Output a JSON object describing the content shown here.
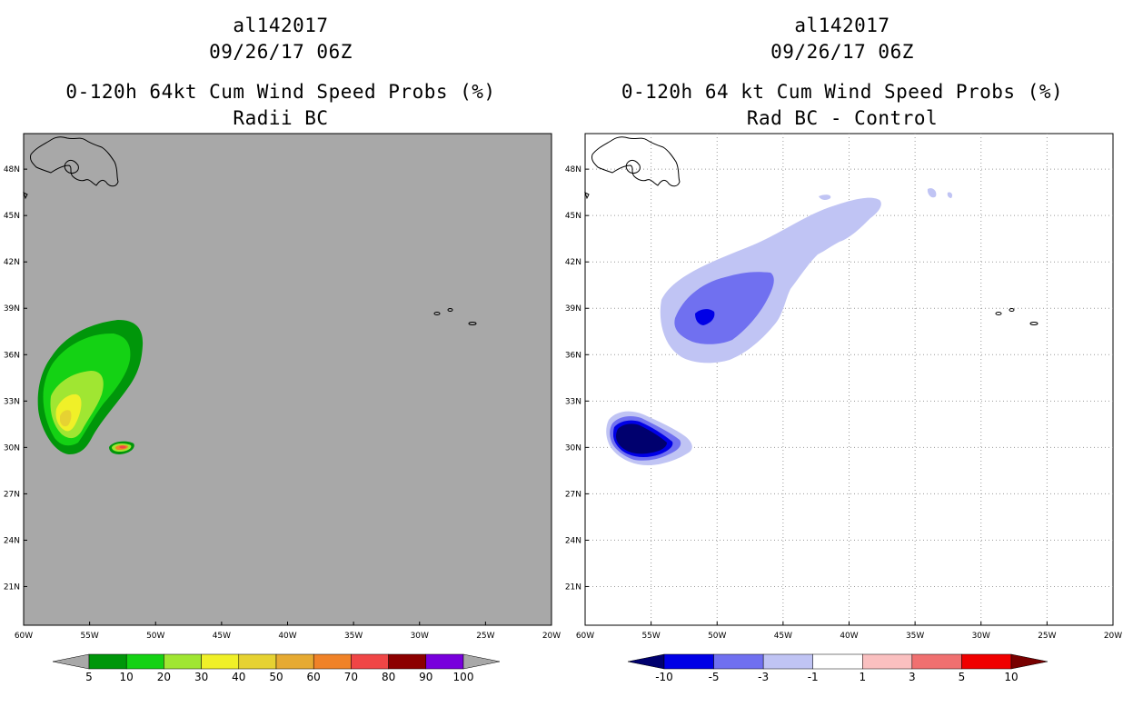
{
  "panels": [
    {
      "id": "left",
      "storm_id": "al142017",
      "datetime": "09/26/17 06Z",
      "title": "0-120h 64kt Cum Wind Speed Probs (%)",
      "subtitle": "Radii BC",
      "background": "#a8a8a8",
      "grid": false,
      "colorbar": {
        "labels": [
          "5",
          "10",
          "20",
          "30",
          "40",
          "50",
          "60",
          "70",
          "80",
          "90",
          "100"
        ],
        "colors": [
          "#00960a",
          "#14d214",
          "#a0e632",
          "#f0f028",
          "#e6d232",
          "#e6aa32",
          "#f08228",
          "#f04646",
          "#8c0000",
          "#7800dc"
        ],
        "under_color": "#a8a8a8",
        "over_color": "#a8a8a8"
      }
    },
    {
      "id": "right",
      "storm_id": "al142017",
      "datetime": "09/26/17 06Z",
      "title": "0-120h 64 kt Cum Wind Speed Probs (%)",
      "subtitle": "Rad BC - Control",
      "background": "#ffffff",
      "grid": true,
      "colorbar": {
        "labels": [
          "-10",
          "-5",
          "-3",
          "-1",
          "1",
          "3",
          "5",
          "10"
        ],
        "colors": [
          "#0000e6",
          "#7070f0",
          "#c0c4f4",
          "#ffffff",
          "#fac0c0",
          "#f07070",
          "#f00000"
        ],
        "under_color": "#00006e",
        "over_color": "#780000"
      }
    }
  ],
  "axes": {
    "x_labels": [
      "60W",
      "55W",
      "50W",
      "45W",
      "40W",
      "35W",
      "30W",
      "25W",
      "20W"
    ],
    "y_labels": [
      "48N",
      "45N",
      "42N",
      "39N",
      "36N",
      "33N",
      "30N",
      "27N",
      "24N",
      "21N"
    ],
    "lon_range": [
      -60,
      -20
    ],
    "lat_range": [
      18.5,
      50.3
    ]
  }
}
